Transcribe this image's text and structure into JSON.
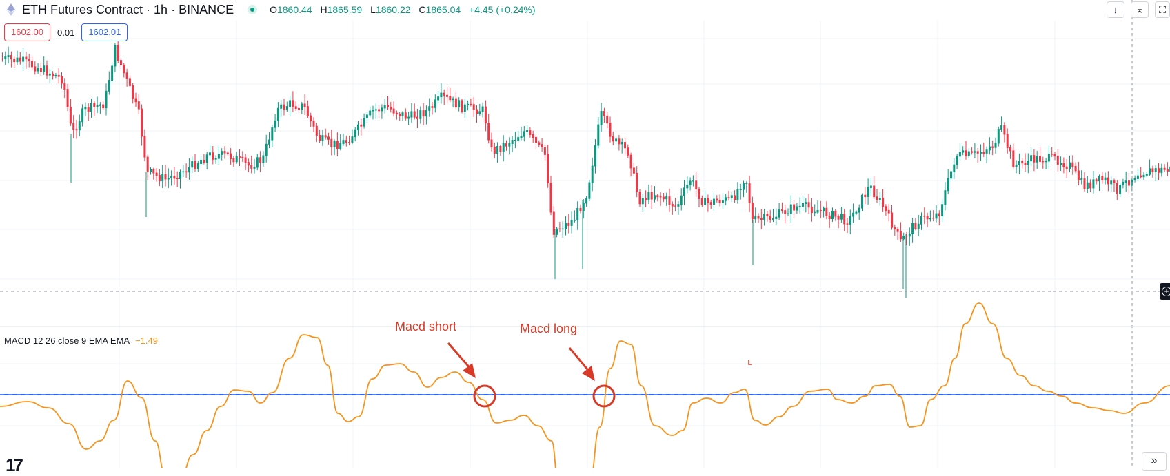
{
  "header": {
    "symbol_title": "ETH Futures Contract · 1h · BINANCE",
    "ohlc": {
      "open_label": "O",
      "open_value": "1860.44",
      "high_label": "H",
      "high_value": "1865.59",
      "low_label": "L",
      "low_value": "1860.22",
      "close_label": "C",
      "close_value": "1865.04",
      "change": "+4.45 (+0.24%)"
    }
  },
  "trade": {
    "sell_price": "1602.00",
    "spread": "0.01",
    "buy_price": "1602.01"
  },
  "macd": {
    "label": "MACD 12 26 close 9 EMA EMA",
    "value": "−1.49"
  },
  "annotations": {
    "short": "Macd short",
    "long": "Macd long"
  },
  "toolbar": {
    "down_arrow": "↓",
    "collapse": "⌅",
    "maximize": "⛶",
    "scroll_right": "»"
  },
  "colors": {
    "up": "#089981",
    "down": "#f23645",
    "macd_line": "#f7931a",
    "zero_line": "#2962ff",
    "annotation": "#d93a27"
  }
}
